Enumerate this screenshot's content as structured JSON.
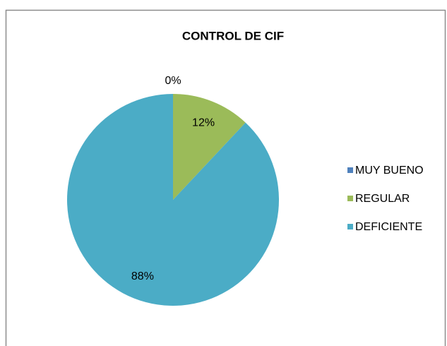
{
  "chart_data": {
    "type": "pie",
    "title": "CONTROL DE CIF",
    "categories": [
      "MUY BUENO",
      "REGULAR",
      "DEFICIENTE"
    ],
    "values": [
      0,
      12,
      88
    ],
    "value_labels": [
      "0%",
      "12%",
      "88%"
    ],
    "colors": [
      "#4f81bd",
      "#9bbb59",
      "#4bacc6"
    ],
    "legend": "right"
  }
}
